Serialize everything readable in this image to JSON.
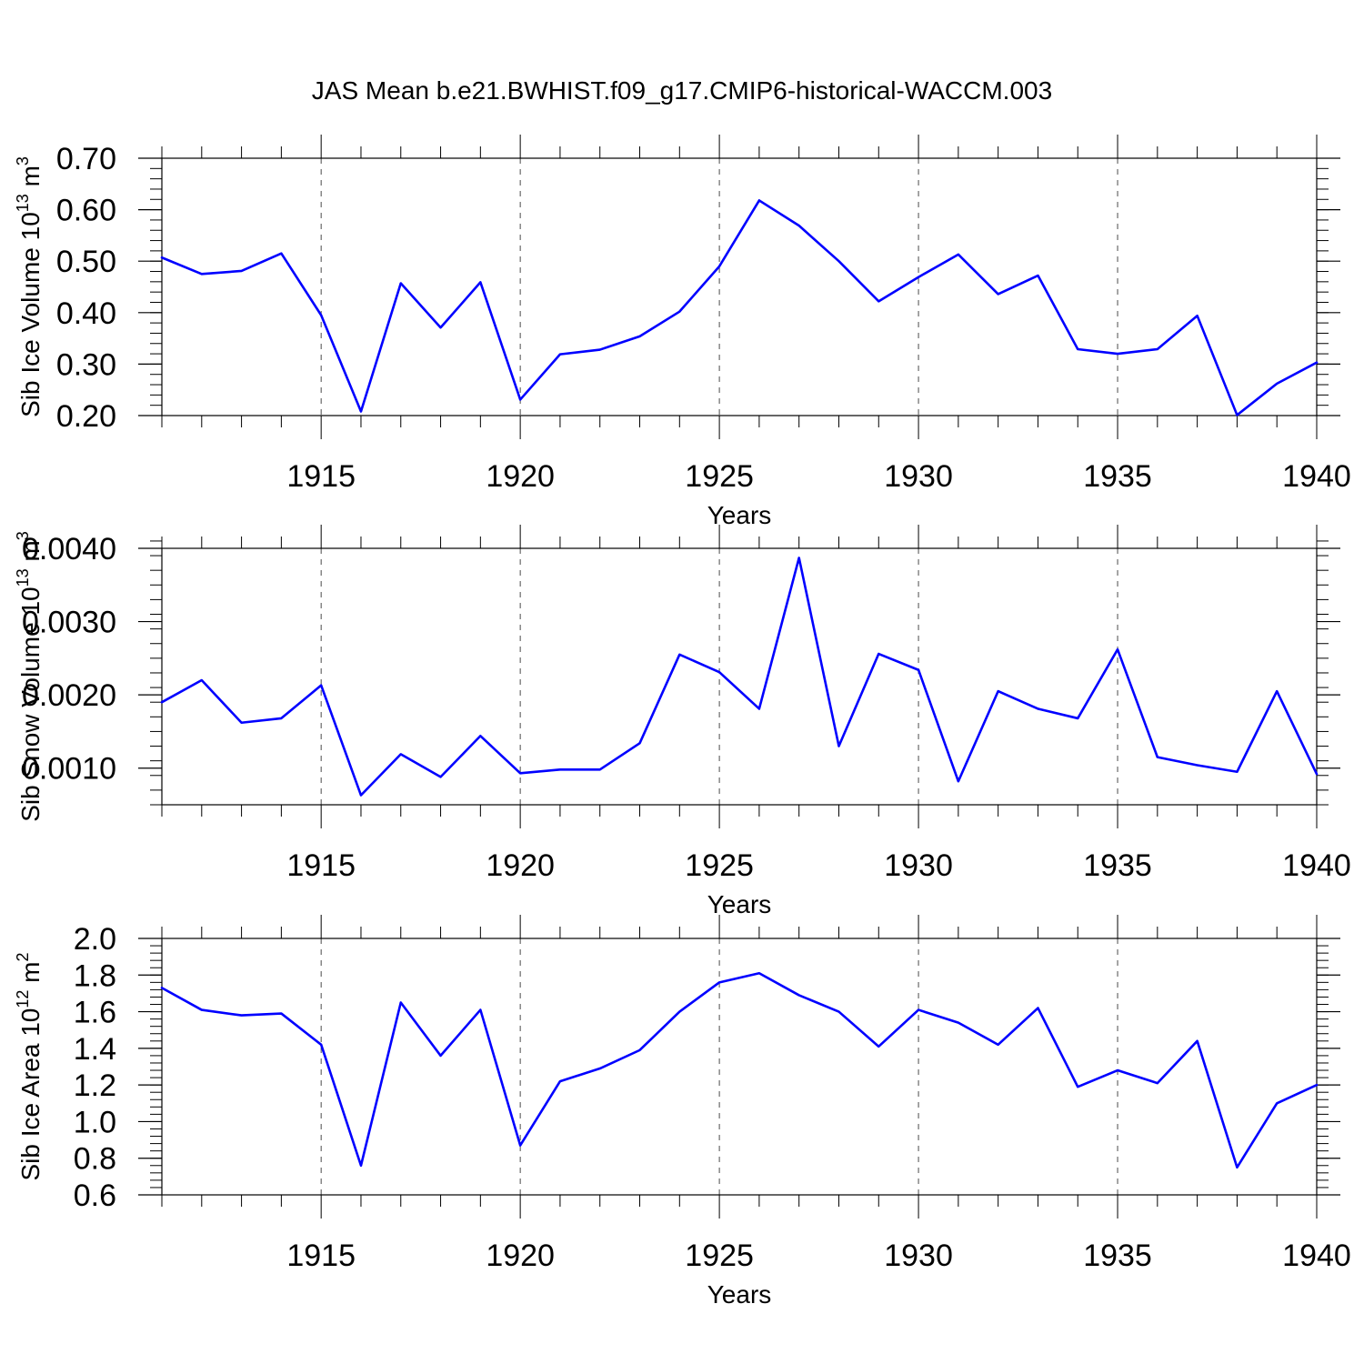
{
  "title": "JAS Mean b.e21.BWHIST.f09_g17.CMIP6-historical-WACCM.003",
  "colors": {
    "line": "#0000ff",
    "axis": "#000000",
    "grid": "#000000"
  },
  "chart_data": [
    {
      "type": "line",
      "ylabel_main": "Sib Ice Volume 10",
      "ylabel_exp": "13",
      "ylabel_unit": " m",
      "ylabel_unit_exp": "3",
      "xlabel": "Years",
      "xlim": [
        1911,
        1940
      ],
      "ylim": [
        0.2,
        0.7
      ],
      "x_ticks": [
        1915,
        1920,
        1925,
        1930,
        1935,
        1940
      ],
      "y_ticks": [
        0.2,
        0.3,
        0.4,
        0.5,
        0.6,
        0.7
      ],
      "y_tick_labels": [
        "0.20",
        "0.30",
        "0.40",
        "0.50",
        "0.60",
        "0.70"
      ],
      "y_minor_step": 0.02,
      "x": [
        1911,
        1912,
        1913,
        1914,
        1915,
        1916,
        1917,
        1918,
        1919,
        1920,
        1921,
        1922,
        1923,
        1924,
        1925,
        1926,
        1927,
        1928,
        1929,
        1930,
        1931,
        1932,
        1933,
        1934,
        1935,
        1936,
        1937,
        1938,
        1939,
        1940
      ],
      "values": [
        0.507,
        0.475,
        0.481,
        0.515,
        0.395,
        0.208,
        0.457,
        0.371,
        0.459,
        0.231,
        0.319,
        0.328,
        0.354,
        0.402,
        0.49,
        0.618,
        0.569,
        0.5,
        0.422,
        0.469,
        0.513,
        0.436,
        0.472,
        0.329,
        0.32,
        0.329,
        0.394,
        0.201,
        0.262,
        0.303
      ]
    },
    {
      "type": "line",
      "ylabel_main": "Sib Snow Volume 10",
      "ylabel_exp": "13",
      "ylabel_unit": " m",
      "ylabel_unit_exp": "3",
      "xlabel": "Years",
      "xlim": [
        1911,
        1940
      ],
      "ylim": [
        0.0005,
        0.004
      ],
      "x_ticks": [
        1915,
        1920,
        1925,
        1930,
        1935,
        1940
      ],
      "y_ticks": [
        0.001,
        0.002,
        0.003,
        0.004
      ],
      "y_tick_labels": [
        "0.0010",
        "0.0020",
        "0.0030",
        "0.0040"
      ],
      "y_minor_step": 0.0002,
      "x": [
        1911,
        1912,
        1913,
        1914,
        1915,
        1916,
        1917,
        1918,
        1919,
        1920,
        1921,
        1922,
        1923,
        1924,
        1925,
        1926,
        1927,
        1928,
        1929,
        1930,
        1931,
        1932,
        1933,
        1934,
        1935,
        1936,
        1937,
        1938,
        1939,
        1940
      ],
      "values": [
        0.0019,
        0.0022,
        0.00162,
        0.00168,
        0.00213,
        0.00063,
        0.00119,
        0.00088,
        0.00144,
        0.00093,
        0.00098,
        0.00098,
        0.00134,
        0.00255,
        0.00231,
        0.00181,
        0.00387,
        0.0013,
        0.00256,
        0.00234,
        0.00082,
        0.00205,
        0.00181,
        0.00168,
        0.00262,
        0.00115,
        0.00104,
        0.00095,
        0.00205,
        0.00092
      ]
    },
    {
      "type": "line",
      "ylabel_main": "Sib Ice Area 10",
      "ylabel_exp": "12",
      "ylabel_unit": " m",
      "ylabel_unit_exp": "2",
      "xlabel": "Years",
      "xlim": [
        1911,
        1940
      ],
      "ylim": [
        0.6,
        2.0
      ],
      "x_ticks": [
        1915,
        1920,
        1925,
        1930,
        1935,
        1940
      ],
      "y_ticks": [
        0.6,
        0.8,
        1.0,
        1.2,
        1.4,
        1.6,
        1.8,
        2.0
      ],
      "y_tick_labels": [
        "0.6",
        "0.8",
        "1.0",
        "1.2",
        "1.4",
        "1.6",
        "1.8",
        "2.0"
      ],
      "y_minor_step": 0.04,
      "x": [
        1911,
        1912,
        1913,
        1914,
        1915,
        1916,
        1917,
        1918,
        1919,
        1920,
        1921,
        1922,
        1923,
        1924,
        1925,
        1926,
        1927,
        1928,
        1929,
        1930,
        1931,
        1932,
        1933,
        1934,
        1935,
        1936,
        1937,
        1938,
        1939,
        1940
      ],
      "values": [
        1.73,
        1.61,
        1.58,
        1.59,
        1.42,
        0.76,
        1.65,
        1.36,
        1.61,
        0.87,
        1.22,
        1.29,
        1.39,
        1.6,
        1.76,
        1.81,
        1.69,
        1.6,
        1.41,
        1.61,
        1.54,
        1.42,
        1.62,
        1.19,
        1.28,
        1.21,
        1.44,
        0.75,
        1.1,
        1.2
      ]
    }
  ]
}
